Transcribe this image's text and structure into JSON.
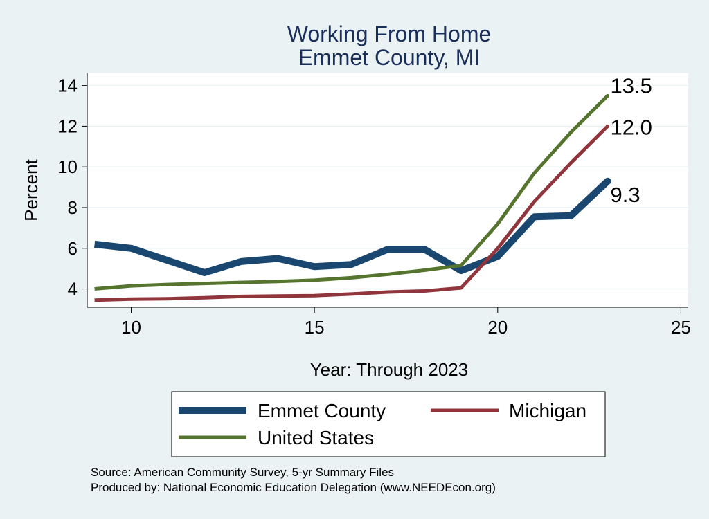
{
  "chart_data": {
    "type": "line",
    "title": "Working From Home",
    "subtitle": "Emmet County, MI",
    "xlabel": "Year: Through 2023",
    "ylabel": "Percent",
    "xlim": [
      8.8,
      25.2
    ],
    "ylim": [
      3.1,
      14.6
    ],
    "xticks": [
      10,
      15,
      20,
      25
    ],
    "yticks": [
      4,
      6,
      8,
      10,
      12,
      14
    ],
    "grid": true,
    "legend_position": "bottom",
    "series": [
      {
        "name": "Emmet County",
        "color": "#1a476f",
        "x": [
          9,
          10,
          11,
          12,
          13,
          14,
          15,
          16,
          17,
          18,
          19,
          20,
          21,
          22,
          23
        ],
        "y": [
          6.2,
          6.0,
          5.4,
          4.8,
          5.35,
          5.5,
          5.1,
          5.2,
          5.95,
          5.95,
          4.9,
          5.6,
          7.55,
          7.6,
          9.3
        ],
        "end_label": "9.3"
      },
      {
        "name": "Michigan",
        "color": "#90353b",
        "x": [
          9,
          10,
          11,
          12,
          13,
          14,
          15,
          16,
          17,
          18,
          19,
          20,
          21,
          22,
          23
        ],
        "y": [
          3.45,
          3.5,
          3.52,
          3.57,
          3.63,
          3.65,
          3.67,
          3.75,
          3.85,
          3.9,
          4.05,
          6.0,
          8.3,
          10.2,
          12.0
        ],
        "end_label": "12.0"
      },
      {
        "name": "United States",
        "color": "#55752f",
        "x": [
          9,
          10,
          11,
          12,
          13,
          14,
          15,
          16,
          17,
          18,
          19,
          20,
          21,
          22,
          23
        ],
        "y": [
          4.0,
          4.15,
          4.22,
          4.27,
          4.32,
          4.37,
          4.43,
          4.55,
          4.72,
          4.92,
          5.15,
          7.2,
          9.7,
          11.7,
          13.5
        ],
        "end_label": "13.5"
      }
    ]
  },
  "notes": {
    "source": "Source: American Community Survey, 5-yr Summary Files",
    "produced_by": "Produced by: National Economic Education Delegation (www.NEEDEcon.org)"
  }
}
